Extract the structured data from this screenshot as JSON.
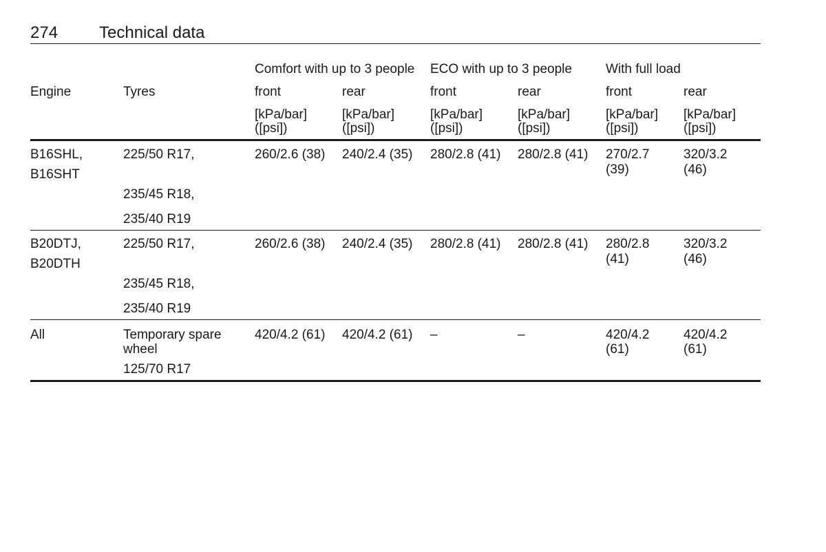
{
  "header": {
    "page_number": "274",
    "title": "Technical data"
  },
  "table": {
    "group_headers": [
      "Comfort with up to 3 people",
      "ECO with up to 3 people",
      "With full load"
    ],
    "col_engine": "Engine",
    "col_tyres": "Tyres",
    "sub_headers": [
      "front",
      "rear",
      "front",
      "rear",
      "front",
      "rear"
    ],
    "unit_line1": "[kPa/bar]",
    "unit_line2": "([psi])",
    "rows": [
      {
        "engine": [
          "B16SHL,",
          "B16SHT"
        ],
        "tyres": [
          "225/50 R17,",
          "235/45 R18,",
          "235/40 R19"
        ],
        "values": [
          [
            "260/2.6 (38)"
          ],
          [
            "240/2.4 (35)"
          ],
          [
            "280/2.8 (41)"
          ],
          [
            "280/2.8 (41)"
          ],
          [
            "270/2.7",
            "(39)"
          ],
          [
            "320/3.2",
            "(46)"
          ]
        ]
      },
      {
        "engine": [
          "B20DTJ,",
          "B20DTH"
        ],
        "tyres": [
          "225/50 R17,",
          "235/45 R18,",
          "235/40 R19"
        ],
        "values": [
          [
            "260/2.6 (38)"
          ],
          [
            "240/2.4 (35)"
          ],
          [
            "280/2.8 (41)"
          ],
          [
            "280/2.8 (41)"
          ],
          [
            "280/2.8",
            "(41)"
          ],
          [
            "320/3.2",
            "(46)"
          ]
        ]
      },
      {
        "engine": [
          "All"
        ],
        "tyres": [
          "Temporary spare",
          "wheel",
          "125/70 R17"
        ],
        "values": [
          [
            "420/4.2 (61)"
          ],
          [
            "420/4.2 (61)"
          ],
          [
            "–"
          ],
          [
            "–"
          ],
          [
            "420/4.2",
            "(61)"
          ],
          [
            "420/4.2",
            "(61)"
          ]
        ]
      }
    ]
  }
}
